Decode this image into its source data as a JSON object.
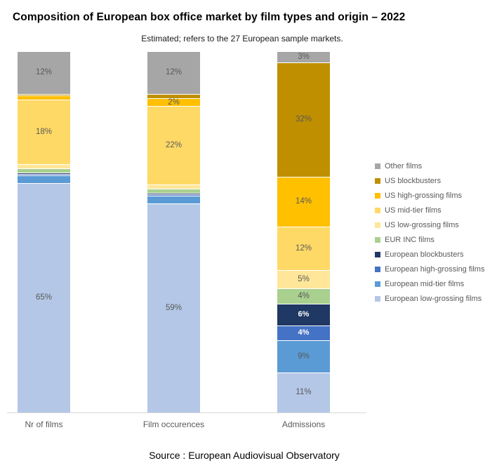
{
  "title": "Composition of European box office market by film types and origin – 2022",
  "subtitle": "Estimated; refers to the 27 European sample markets.",
  "source": "Source : European Audiovisual Observatory",
  "chart_data": {
    "type": "bar",
    "stacked": true,
    "orientation": "vertical",
    "unit": "%",
    "ylim": [
      0,
      100
    ],
    "grid": false,
    "legend_position": "right",
    "categories": [
      "Nr of films",
      "Film occurences",
      "Admissions"
    ],
    "series": [
      {
        "key": "other",
        "name": "Other films",
        "color": "#A6A6A6",
        "values": [
          12,
          12,
          3
        ],
        "labels": [
          "12%",
          "12%",
          "3%"
        ]
      },
      {
        "key": "us_blockbusters",
        "name": "US blockbusters",
        "color": "#BF8F00",
        "values": [
          0,
          1,
          32
        ],
        "labels": [
          "",
          "",
          "32%"
        ]
      },
      {
        "key": "us_high",
        "name": "US high-grossing films",
        "color": "#FFC000",
        "values": [
          1,
          2,
          14
        ],
        "labels": [
          "",
          "2%",
          "14%"
        ]
      },
      {
        "key": "us_mid",
        "name": "US mid-tier films",
        "color": "#FFD966",
        "values": [
          18,
          22,
          12
        ],
        "labels": [
          "18%",
          "22%",
          "12%"
        ]
      },
      {
        "key": "us_low",
        "name": "US low-grossing films",
        "color": "#FFE699",
        "values": [
          1,
          1,
          5
        ],
        "labels": [
          "",
          "",
          "5%"
        ]
      },
      {
        "key": "eur_inc",
        "name": "EUR INC films",
        "color": "#A9D08E",
        "values": [
          1,
          1,
          4
        ],
        "labels": [
          "",
          "",
          "4%"
        ]
      },
      {
        "key": "eu_blockbusters",
        "name": "European blockbusters",
        "color": "#1F3864",
        "values": [
          0,
          0,
          6
        ],
        "labels": [
          "",
          "",
          "6%"
        ]
      },
      {
        "key": "eu_high",
        "name": "European high-grossing films",
        "color": "#4472C4",
        "values": [
          0,
          0,
          4
        ],
        "labels": [
          "",
          "",
          "4%"
        ]
      },
      {
        "key": "eu_mid",
        "name": "European mid-tier films",
        "color": "#5B9BD5",
        "values": [
          2,
          2,
          9
        ],
        "labels": [
          "",
          "",
          "9%"
        ]
      },
      {
        "key": "eu_low",
        "name": "European low-grossing films",
        "color": "#B4C7E7",
        "values": [
          65,
          59,
          11
        ],
        "labels": [
          "65%",
          "59%",
          "11%"
        ]
      }
    ]
  }
}
